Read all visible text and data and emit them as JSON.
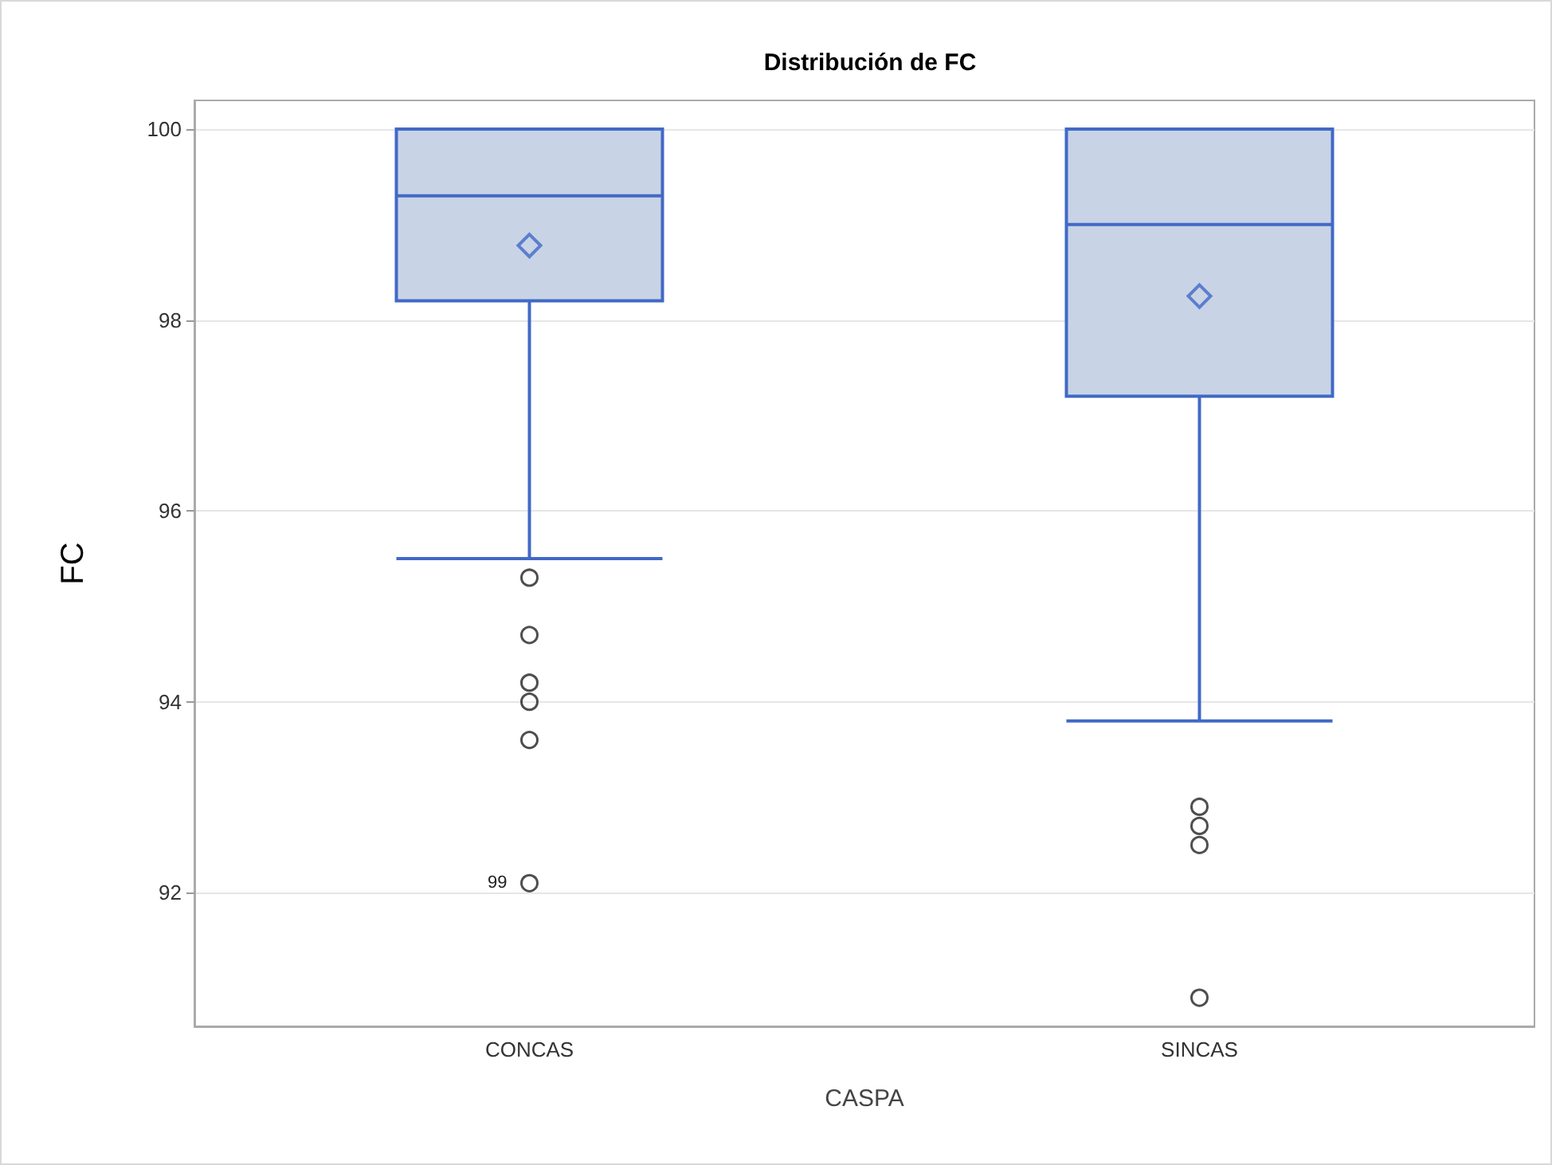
{
  "chart_data": {
    "type": "box",
    "title": "Distribución de FC",
    "xlabel": "CASPA",
    "ylabel": "FC",
    "categories": [
      "CONCAS",
      "SINCAS"
    ],
    "series": [
      {
        "color": "#c8d3e6",
        "boxes": [
          {
            "low": 95.5,
            "q1": 98.2,
            "median": 99.3,
            "q3": 100,
            "high": 100,
            "mean": 98.78,
            "outliers": [
              95.3,
              94.7,
              94.2,
              94.0,
              93.6,
              92.1
            ]
          },
          {
            "low": 93.8,
            "q1": 97.2,
            "median": 99.0,
            "q3": 100,
            "high": 100,
            "mean": 98.25,
            "outliers": [
              92.9,
              92.7,
              92.5,
              90.9
            ]
          }
        ]
      }
    ],
    "ylim": [
      90.6,
      100.3
    ],
    "yticks": [
      92,
      94,
      96,
      98,
      100
    ],
    "grid": "y",
    "annotations": [
      "99"
    ]
  }
}
